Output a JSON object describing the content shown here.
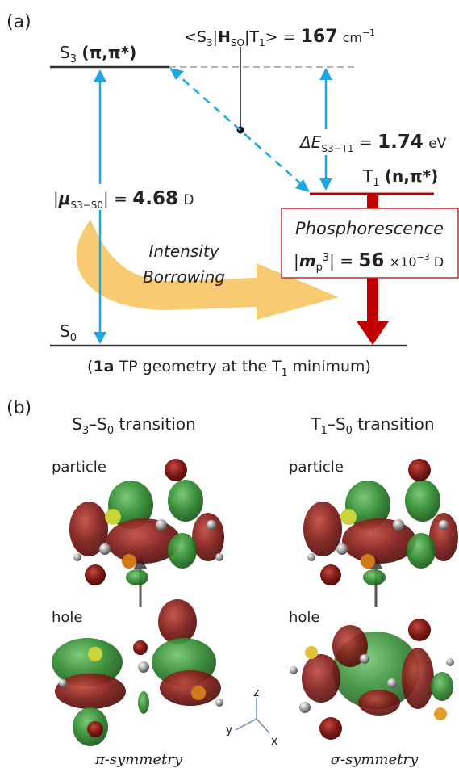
{
  "panel_a": {
    "label": "(a)",
    "s3_level": {
      "prefix": "S",
      "sub": "3",
      "state": "(π,π*)"
    },
    "t1_level": {
      "prefix": "T",
      "sub": "1",
      "state": "(n,π*)"
    },
    "s0_level": {
      "prefix": "S",
      "sub": "0"
    },
    "soc": {
      "bra": "<S",
      "bra_sub": "3",
      "op": "H",
      "op_sub": "SO",
      "ket": "T",
      "ket_sub": "1",
      "ket_close": ">",
      "eq": " = ",
      "value": "167",
      "unit": "cm",
      "unit_sup": "−1"
    },
    "gap": {
      "sym": "ΔE",
      "sub": "S3−T1",
      "eq": " = ",
      "value": "1.74",
      "unit": "eV"
    },
    "tdm": {
      "sym": "μ",
      "sub": "S3−S0",
      "eq": " = ",
      "value": "4.68",
      "unit": "D"
    },
    "intensity_borrowing": [
      "Intensity",
      "Borrowing"
    ],
    "phosphorescence": {
      "title": "Phosphorescence",
      "sym": "m",
      "sub": "p",
      "sup": "3",
      "eq": " = ",
      "value": "56",
      "unit": "×10",
      "unit_sup": "−3",
      "unit_end": " D"
    },
    "caption": {
      "bold": "1a",
      "text1": " TP geometry at the T",
      "sub": "1",
      "text2": " minimum)",
      "open": "("
    }
  },
  "panel_b": {
    "label": "(b)",
    "left": {
      "prefix": "S",
      "sub1": "3",
      "dash": "–S",
      "sub2": "0",
      "suffix": " transition",
      "particle": "particle",
      "hole": "hole",
      "symmetry": "π-symmetry"
    },
    "right": {
      "prefix": "T",
      "sub1": "1",
      "dash": "–S",
      "sub2": "0",
      "suffix": " transition",
      "particle": "particle",
      "hole": "hole",
      "symmetry": "σ-symmetry"
    },
    "axes": {
      "z": "z",
      "y": "y",
      "x": "x"
    }
  },
  "colors": {
    "arrow_blue": "#1aa7e6",
    "t1_red": "#c00000",
    "box_red": "#c8262b",
    "borrow_orange": "#f7c25a",
    "lobe_red": "#7a1414",
    "lobe_green": "#2f8a2f"
  }
}
